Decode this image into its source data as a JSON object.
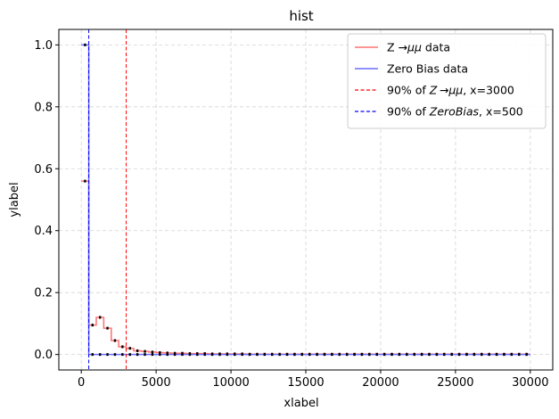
{
  "chart_data": {
    "type": "line",
    "title": "hist",
    "xlabel": "xlabel",
    "ylabel": "ylabel",
    "xlim": [
      -1500,
      31500
    ],
    "ylim": [
      -0.05,
      1.05
    ],
    "xticks": [
      0,
      5000,
      10000,
      15000,
      20000,
      25000,
      30000
    ],
    "xtick_labels": [
      "0",
      "5000",
      "10000",
      "15000",
      "20000",
      "25000",
      "30000"
    ],
    "yticks": [
      0.0,
      0.2,
      0.4,
      0.6,
      0.8,
      1.0
    ],
    "ytick_labels": [
      "0.0",
      "0.2",
      "0.4",
      "0.6",
      "0.8",
      "1.0"
    ],
    "grid": true,
    "bin_width": 500,
    "series": [
      {
        "name": "Z  →μμ data",
        "style": "step",
        "color": "#ff7070",
        "x": [
          250,
          750,
          1250,
          1750,
          2250,
          2750,
          3250,
          3750,
          4250,
          4750,
          5250,
          5750,
          6250,
          6750,
          7250,
          7750,
          8250,
          8750,
          9250,
          9750,
          10250,
          10750,
          11250,
          11750,
          12250,
          12750,
          13250,
          13750,
          14250,
          14750,
          15250,
          15750,
          16250,
          16750,
          17250,
          17750,
          18250,
          18750,
          19250,
          19750,
          20250,
          20750,
          21250,
          21750,
          22250,
          22750,
          23250,
          23750,
          24250,
          24750,
          25250,
          25750,
          26250,
          26750,
          27250,
          27750,
          28250,
          28750,
          29250,
          29750
        ],
        "values": [
          0.56,
          0.095,
          0.12,
          0.085,
          0.045,
          0.025,
          0.02,
          0.012,
          0.01,
          0.008,
          0.006,
          0.005,
          0.004,
          0.004,
          0.003,
          0.003,
          0.003,
          0.002,
          0.002,
          0.002,
          0.002,
          0.002,
          0.001,
          0.001,
          0.001,
          0.001,
          0.001,
          0.001,
          0.001,
          0.001,
          0.001,
          0.001,
          0.001,
          0.001,
          0.001,
          0.001,
          0.001,
          0.001,
          0.001,
          0.001,
          0.001,
          0.001,
          0.001,
          0.001,
          0.001,
          0.001,
          0.001,
          0.001,
          0.001,
          0.001,
          0.001,
          0.001,
          0.001,
          0.001,
          0.001,
          0.001,
          0.001,
          0.001,
          0.001,
          0.001
        ]
      },
      {
        "name": "Zero Bias data",
        "style": "step",
        "color": "#6b6bff",
        "x": [
          250,
          750,
          1250,
          1750,
          2250,
          2750,
          3250,
          3750,
          4250,
          4750,
          5250,
          5750,
          6250,
          6750,
          7250,
          7750,
          8250,
          8750,
          9250,
          9750,
          10250,
          10750,
          11250,
          11750,
          12250,
          12750,
          13250,
          13750,
          14250,
          14750,
          15250,
          15750,
          16250,
          16750,
          17250,
          17750,
          18250,
          18750,
          19250,
          19750,
          20250,
          20750,
          21250,
          21750,
          22250,
          22750,
          23250,
          23750,
          24250,
          24750,
          25250,
          25750,
          26250,
          26750,
          27250,
          27750,
          28250,
          28750,
          29250,
          29750
        ],
        "values": [
          1.0,
          0.0,
          0.0,
          0.0,
          0.0,
          0.0,
          0.0,
          0.0,
          0.0,
          0.0,
          0.0,
          0.0,
          0.0,
          0.0,
          0.0,
          0.0,
          0.0,
          0.0,
          0.0,
          0.0,
          0.0,
          0.0,
          0.0,
          0.0,
          0.0,
          0.0,
          0.0,
          0.0,
          0.0,
          0.0,
          0.0,
          0.0,
          0.0,
          0.0,
          0.0,
          0.0,
          0.0,
          0.0,
          0.0,
          0.0,
          0.0,
          0.0,
          0.0,
          0.0,
          0.0,
          0.0,
          0.0,
          0.0,
          0.0,
          0.0,
          0.0,
          0.0,
          0.0,
          0.0,
          0.0,
          0.0,
          0.0,
          0.0,
          0.0,
          0.0
        ]
      }
    ],
    "vlines": [
      {
        "name_prefix": "90% of ",
        "name_math": "Z →μμ",
        "name_suffix": ", x=3000",
        "x": 3000,
        "color": "#ff0000",
        "style": "dashed"
      },
      {
        "name_prefix": "90% of ",
        "name_math": "ZeroBias",
        "name_suffix": ", x=500",
        "x": 500,
        "color": "#0000ff",
        "style": "dashed"
      }
    ],
    "legend": {
      "placement": "top-right",
      "entries": [
        {
          "label_plain": "Z  →",
          "label_math": "μμ",
          "label_tail": " data",
          "color": "#ff7070",
          "dashed": false
        },
        {
          "label_plain": "Zero Bias data",
          "label_math": "",
          "label_tail": "",
          "color": "#6b6bff",
          "dashed": false
        },
        {
          "label_plain": "90% of ",
          "label_math": "Z →μμ",
          "label_tail": ", x=3000",
          "color": "#ff0000",
          "dashed": true
        },
        {
          "label_plain": "90% of ",
          "label_math": "ZeroBias",
          "label_tail": ", x=500",
          "color": "#0000ff",
          "dashed": true
        }
      ]
    }
  }
}
